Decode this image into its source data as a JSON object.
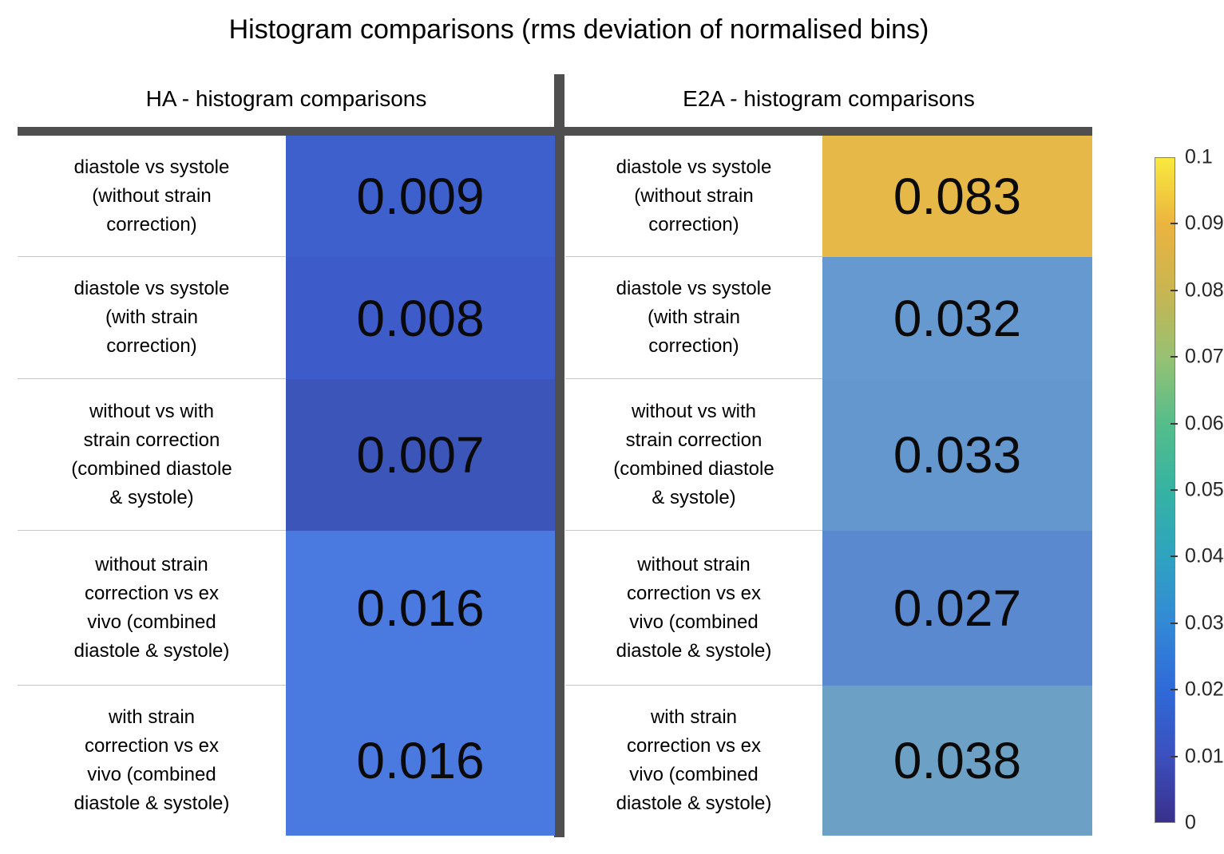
{
  "title": "Histogram comparisons (rms deviation of normalised bins)",
  "panels": [
    {
      "header": "HA - histogram comparisons",
      "rows": [
        {
          "label": "diastole vs systole\n(without strain\ncorrection)",
          "value": "0.009",
          "color": "#3D60CC"
        },
        {
          "label": "diastole vs systole\n(with strain\ncorrection)",
          "value": "0.008",
          "color": "#3D5CC9"
        },
        {
          "label": "without vs with\nstrain correction\n(combined diastole\n& systole)",
          "value": "0.007",
          "color": "#3C55B8"
        },
        {
          "label": "without strain\ncorrection vs ex\nvivo (combined\ndiastole & systole)",
          "value": "0.016",
          "color": "#4A79DF"
        },
        {
          "label": "with strain\ncorrection vs ex\nvivo (combined\ndiastole & systole)",
          "value": "0.016",
          "color": "#4A79DF"
        }
      ]
    },
    {
      "header": "E2A - histogram comparisons",
      "rows": [
        {
          "label": "diastole vs systole\n(without strain\ncorrection)",
          "value": "0.083",
          "color": "#E6B847"
        },
        {
          "label": "diastole vs systole\n(with strain\ncorrection)",
          "value": "0.032",
          "color": "#6699CF"
        },
        {
          "label": "without vs with\nstrain correction\n(combined diastole\n& systole)",
          "value": "0.033",
          "color": "#6397CE"
        },
        {
          "label": "without strain\ncorrection vs ex\nvivo (combined\ndiastole & systole)",
          "value": "0.027",
          "color": "#5A89D0"
        },
        {
          "label": "with strain\ncorrection vs ex\nvivo (combined\ndiastole & systole)",
          "value": "0.038",
          "color": "#6CA0C4"
        }
      ]
    }
  ],
  "colorbar": {
    "min": 0,
    "max": 0.1,
    "colormap": "parula",
    "ticks": [
      "0.1",
      "0.09",
      "0.08",
      "0.07",
      "0.06",
      "0.05",
      "0.04",
      "0.03",
      "0.02",
      "0.01",
      "0"
    ],
    "gradient_top_to_bottom": [
      "#F9E93E",
      "#EBB43F",
      "#C9B551",
      "#97C173",
      "#55BD8B",
      "#35B3A2",
      "#2FA3C0",
      "#3389D6",
      "#2F6AD9",
      "#3C50BF",
      "#39308C"
    ]
  },
  "chart_data": {
    "type": "heatmap",
    "title": "Histogram comparisons (rms deviation of normalised bins)",
    "columns": [
      "HA - histogram comparisons",
      "E2A - histogram comparisons"
    ],
    "rows": [
      "diastole vs systole (without strain correction)",
      "diastole vs systole (with strain correction)",
      "without vs with strain correction (combined diastole & systole)",
      "without strain correction vs ex vivo (combined diastole & systole)",
      "with strain correction vs ex vivo (combined diastole & systole)"
    ],
    "values": [
      [
        0.009,
        0.083
      ],
      [
        0.008,
        0.032
      ],
      [
        0.007,
        0.033
      ],
      [
        0.016,
        0.027
      ],
      [
        0.016,
        0.038
      ]
    ],
    "colorbar_range": [
      0,
      0.1
    ],
    "colorbar_tick_step": 0.01,
    "colormap": "parula",
    "legend_position": "right",
    "grid": false
  }
}
